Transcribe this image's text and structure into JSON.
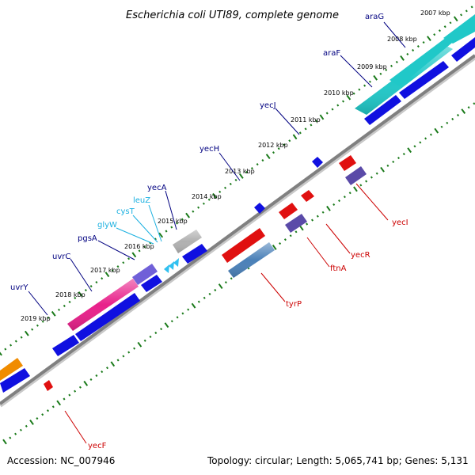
{
  "title": "Escherichia coli UTI89, complete genome",
  "footer": {
    "accession": "Accession: NC_007946",
    "topology": "Topology: circular; Length: 5,065,741 bp; Genes: 5,131"
  },
  "colors": {
    "backbone": "#808080",
    "tick": "#1a7a1a",
    "fwd_label": "#000080",
    "rna_label": "#1ab0e0",
    "rev_label": "#cc0000",
    "cds_fwd": "#1010e0",
    "cds_rev": "#e01010",
    "trna": "#30c0f0",
    "ara": "#20c8c8",
    "uvrC": "#e8208a",
    "purple": "#5a4aa8",
    "pgsA": "#7060d8",
    "grey": "#b0b0b0",
    "steel": "#4a80b8",
    "orange": "#f08c00"
  },
  "kbp_labels": [
    "2007 kbp",
    "2008 kbp",
    "2009 kbp",
    "2010 kbp",
    "2011 kbp",
    "2012 kbp",
    "2013 kbp",
    "2014 kbp",
    "2015 kbp",
    "2016 kbp",
    "2017 kbp",
    "2018 kbp",
    "2019 kbp"
  ],
  "fwd_genes": [
    "araG",
    "araF",
    "yecJ",
    "yecH",
    "yecA",
    "pgsA",
    "uvrC",
    "uvrY"
  ],
  "rna_genes": [
    "leuZ",
    "cysT",
    "glyW"
  ],
  "rev_genes": [
    "yecI",
    "yecR",
    "ftnA",
    "tyrP",
    "yecF"
  ]
}
